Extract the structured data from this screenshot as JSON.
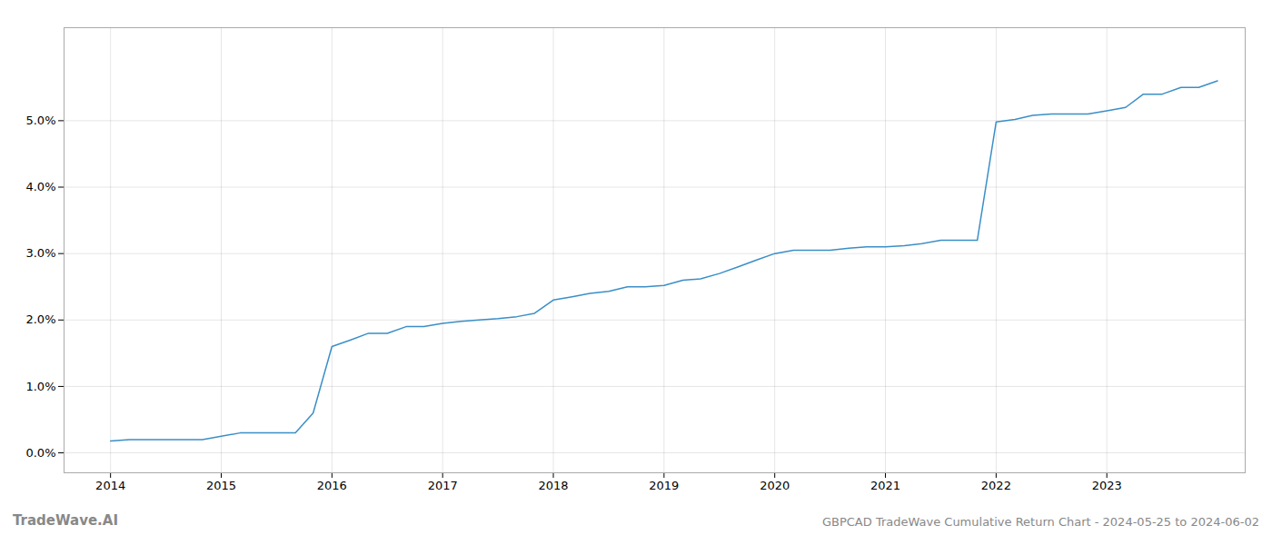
{
  "chart_data": {
    "type": "line",
    "title": "GBPCAD TradeWave Cumulative Return Chart - 2024-05-25 to 2024-06-02",
    "annotations": [
      "TradeWave.AI"
    ],
    "color": "#3a8fc7",
    "grid": true,
    "x": [
      2014.0,
      2014.17,
      2014.33,
      2014.5,
      2014.67,
      2014.83,
      2015.0,
      2015.17,
      2015.33,
      2015.5,
      2015.67,
      2015.83,
      2016.0,
      2016.17,
      2016.33,
      2016.5,
      2016.67,
      2016.83,
      2017.0,
      2017.17,
      2017.33,
      2017.5,
      2017.67,
      2017.83,
      2018.0,
      2018.17,
      2018.33,
      2018.5,
      2018.67,
      2018.83,
      2019.0,
      2019.17,
      2019.33,
      2019.5,
      2019.67,
      2019.83,
      2020.0,
      2020.17,
      2020.33,
      2020.5,
      2020.67,
      2020.83,
      2021.0,
      2021.17,
      2021.33,
      2021.5,
      2021.67,
      2021.83,
      2022.0,
      2022.17,
      2022.33,
      2022.5,
      2022.67,
      2022.83,
      2023.0,
      2023.17,
      2023.33,
      2023.5,
      2023.67,
      2023.83,
      2024.0
    ],
    "values": [
      0.0018,
      0.002,
      0.002,
      0.002,
      0.002,
      0.002,
      0.0025,
      0.003,
      0.003,
      0.003,
      0.003,
      0.006,
      0.016,
      0.017,
      0.018,
      0.018,
      0.019,
      0.019,
      0.0195,
      0.0198,
      0.02,
      0.0202,
      0.0205,
      0.021,
      0.023,
      0.0235,
      0.024,
      0.0243,
      0.025,
      0.025,
      0.0252,
      0.026,
      0.0262,
      0.027,
      0.028,
      0.029,
      0.03,
      0.0305,
      0.0305,
      0.0305,
      0.0308,
      0.031,
      0.031,
      0.0312,
      0.0315,
      0.032,
      0.032,
      0.032,
      0.0498,
      0.0502,
      0.0508,
      0.051,
      0.051,
      0.051,
      0.0515,
      0.052,
      0.054,
      0.054,
      0.055,
      0.055,
      0.056
    ],
    "xlim": [
      2013.58,
      2024.25
    ],
    "xticks": [
      2014,
      2015,
      2016,
      2017,
      2018,
      2019,
      2020,
      2021,
      2022,
      2023
    ],
    "ylim": [
      -0.003,
      0.064
    ],
    "yticks": [
      {
        "value": 0.0,
        "label": "0.0%"
      },
      {
        "value": 0.01,
        "label": "1.0%"
      },
      {
        "value": 0.02,
        "label": "2.0%"
      },
      {
        "value": 0.03,
        "label": "3.0%"
      },
      {
        "value": 0.04,
        "label": "4.0%"
      },
      {
        "value": 0.05,
        "label": "5.0%"
      }
    ]
  }
}
